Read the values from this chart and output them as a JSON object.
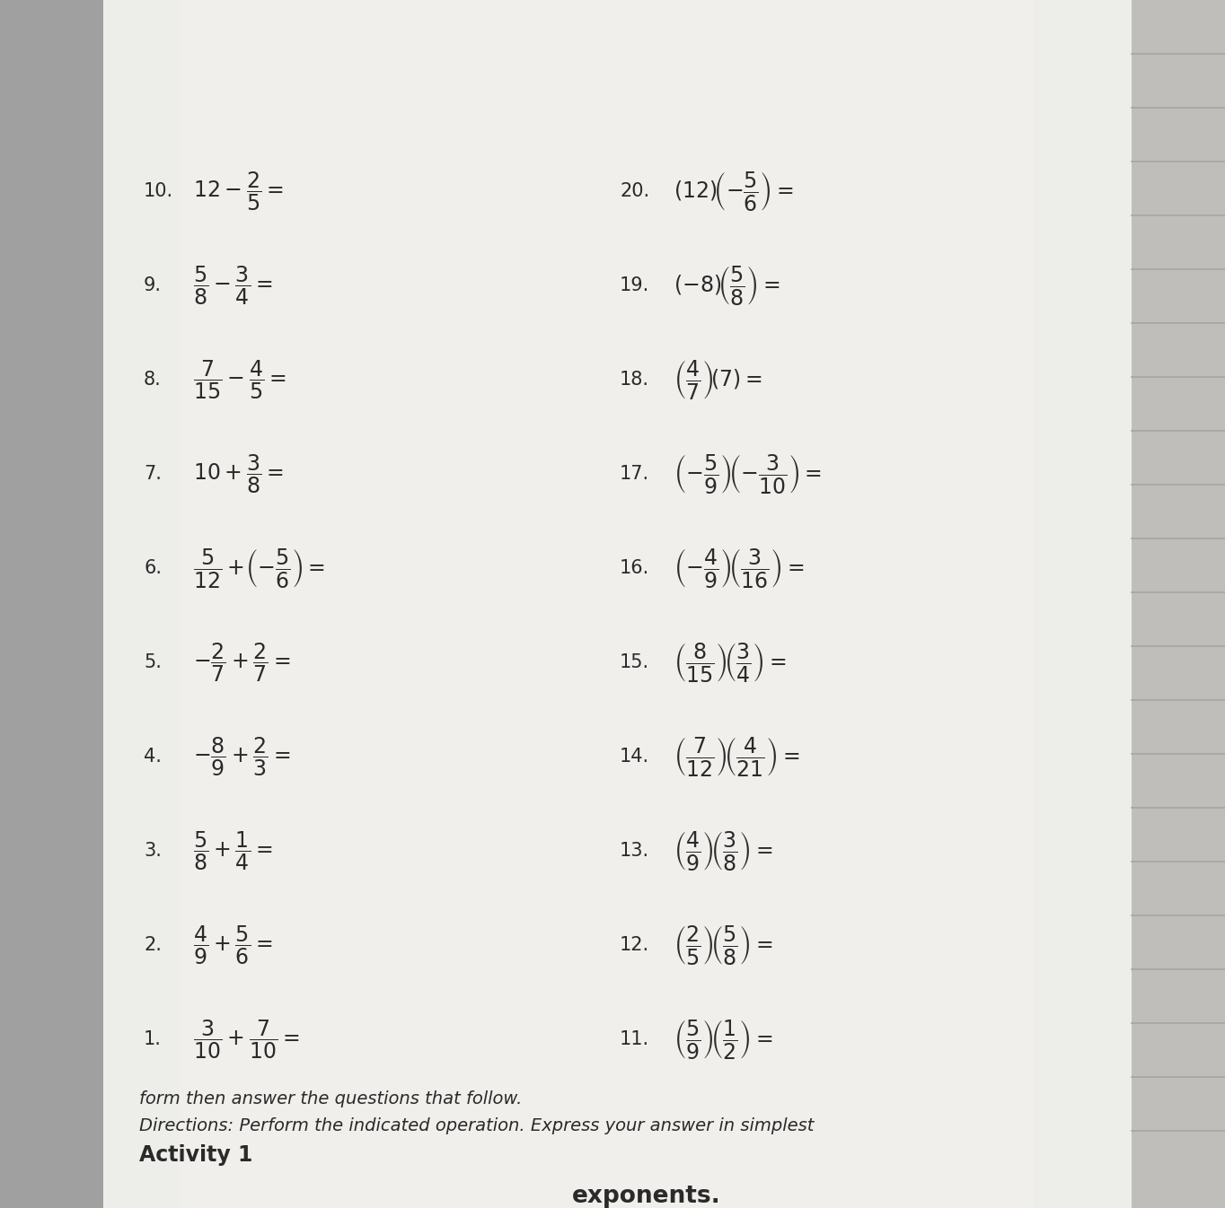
{
  "title": "Activity 1",
  "directions_line1": "Directions: Perform the indicated operation. Express your answer in simplest",
  "directions_line2": "form then answer the questions that follow.",
  "bg_color": "#b8b8b8",
  "paper_color": "#e8e6e2",
  "paper_color2": "#f2f0ec",
  "text_color": "#2a2a2a",
  "line_color": "#999999",
  "left_items": [
    {
      "num": "1.",
      "expr": "$\\dfrac{3}{10}+\\dfrac{7}{10}=$"
    },
    {
      "num": "2.",
      "expr": "$\\dfrac{4}{9}+\\dfrac{5}{6}=$"
    },
    {
      "num": "3.",
      "expr": "$\\dfrac{5}{8}+\\dfrac{1}{4}=$"
    },
    {
      "num": "4.",
      "expr": "$-\\dfrac{8}{9}+\\dfrac{2}{3}=$"
    },
    {
      "num": "5.",
      "expr": "$-\\dfrac{2}{7}+\\dfrac{2}{7}=$"
    },
    {
      "num": "6.",
      "expr": "$\\dfrac{5}{12}+\\!\\left(-\\dfrac{5}{6}\\right)=$"
    },
    {
      "num": "7.",
      "expr": "$10+\\dfrac{3}{8}=$"
    },
    {
      "num": "8.",
      "expr": "$\\dfrac{7}{15}-\\dfrac{4}{5}=$"
    },
    {
      "num": "9.",
      "expr": "$\\dfrac{5}{8}-\\dfrac{3}{4}=$"
    },
    {
      "num": "10.",
      "expr": "$12-\\dfrac{2}{5}=$"
    }
  ],
  "right_items": [
    {
      "num": "11.",
      "expr": "$\\left(\\dfrac{5}{9}\\right)\\!\\left(\\dfrac{1}{2}\\right)=$"
    },
    {
      "num": "12.",
      "expr": "$\\left(\\dfrac{2}{5}\\right)\\!\\left(\\dfrac{5}{8}\\right)=$"
    },
    {
      "num": "13.",
      "expr": "$\\left(\\dfrac{4}{9}\\right)\\!\\left(\\dfrac{3}{8}\\right)=$"
    },
    {
      "num": "14.",
      "expr": "$\\left(\\dfrac{7}{12}\\right)\\!\\left(\\dfrac{4}{21}\\right)=$"
    },
    {
      "num": "15.",
      "expr": "$\\left(\\dfrac{8}{15}\\right)\\!\\left(\\dfrac{3}{4}\\right)=$"
    },
    {
      "num": "16.",
      "expr": "$\\left(-\\dfrac{4}{9}\\right)\\!\\left(\\dfrac{3}{16}\\right)=$"
    },
    {
      "num": "17.",
      "expr": "$\\left(-\\dfrac{5}{9}\\right)\\!\\left(-\\dfrac{3}{10}\\right)=$"
    },
    {
      "num": "18.",
      "expr": "$\\left(\\dfrac{4}{7}\\right)\\!(7)=$"
    },
    {
      "num": "19.",
      "expr": "$(-8)\\!\\left(\\dfrac{5}{8}\\right)=$"
    },
    {
      "num": "20.",
      "expr": "$\\left(12\\right)\\!\\left(-\\dfrac{5}{6}\\right)=$"
    }
  ],
  "title_fontsize": 17,
  "dir_fontsize": 14,
  "num_fontsize": 15,
  "expr_fontsize": 17,
  "top_header_text": "exponents.",
  "n_ruled_lines": 21
}
